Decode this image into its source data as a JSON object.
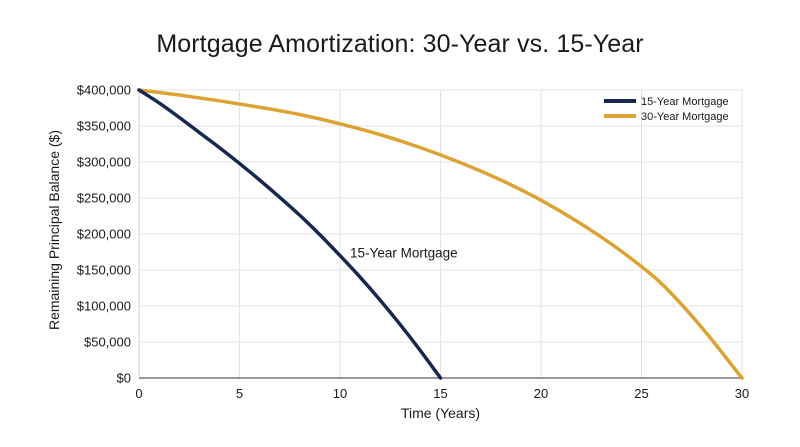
{
  "chart_data": {
    "type": "line",
    "title": "Mortgage Amortization: 30-Year vs. 15-Year",
    "xlabel": "Time (Years)",
    "ylabel": "Remaining Principal Balance ($)",
    "xlim": [
      0,
      30
    ],
    "ylim": [
      0,
      400000
    ],
    "x_ticks": [
      "0",
      "5",
      "10",
      "15",
      "20",
      "25",
      "30"
    ],
    "y_ticks": [
      "$0",
      "$50,000",
      "$100,000",
      "$150,000",
      "$200,000",
      "$250,000",
      "$300,000",
      "$350,000",
      "$400,000"
    ],
    "grid": true,
    "legend_position": "top-right",
    "series": [
      {
        "name": "15-Year Mortgage",
        "color": "#16284f",
        "x": [
          0,
          1,
          2,
          3,
          4,
          5,
          6,
          7,
          8,
          9,
          10,
          11,
          12,
          13,
          14,
          15
        ],
        "y": [
          400000,
          382000,
          362000,
          341000,
          320000,
          298000,
          275000,
          251000,
          226000,
          199000,
          170000,
          140000,
          108000,
          74000,
          38000,
          0
        ]
      },
      {
        "name": "30-Year Mortgage",
        "color": "#dca233",
        "x": [
          0,
          2,
          4,
          6,
          8,
          10,
          12,
          14,
          16,
          18,
          20,
          22,
          24,
          26,
          28,
          30
        ],
        "y": [
          400000,
          393000,
          385000,
          376000,
          366000,
          353000,
          338000,
          320000,
          299000,
          275000,
          247000,
          214000,
          176000,
          131000,
          70000,
          0
        ]
      }
    ],
    "annotations": [
      {
        "text": "15-Year Mortgage",
        "x": 10.5,
        "y": 174000
      }
    ]
  }
}
